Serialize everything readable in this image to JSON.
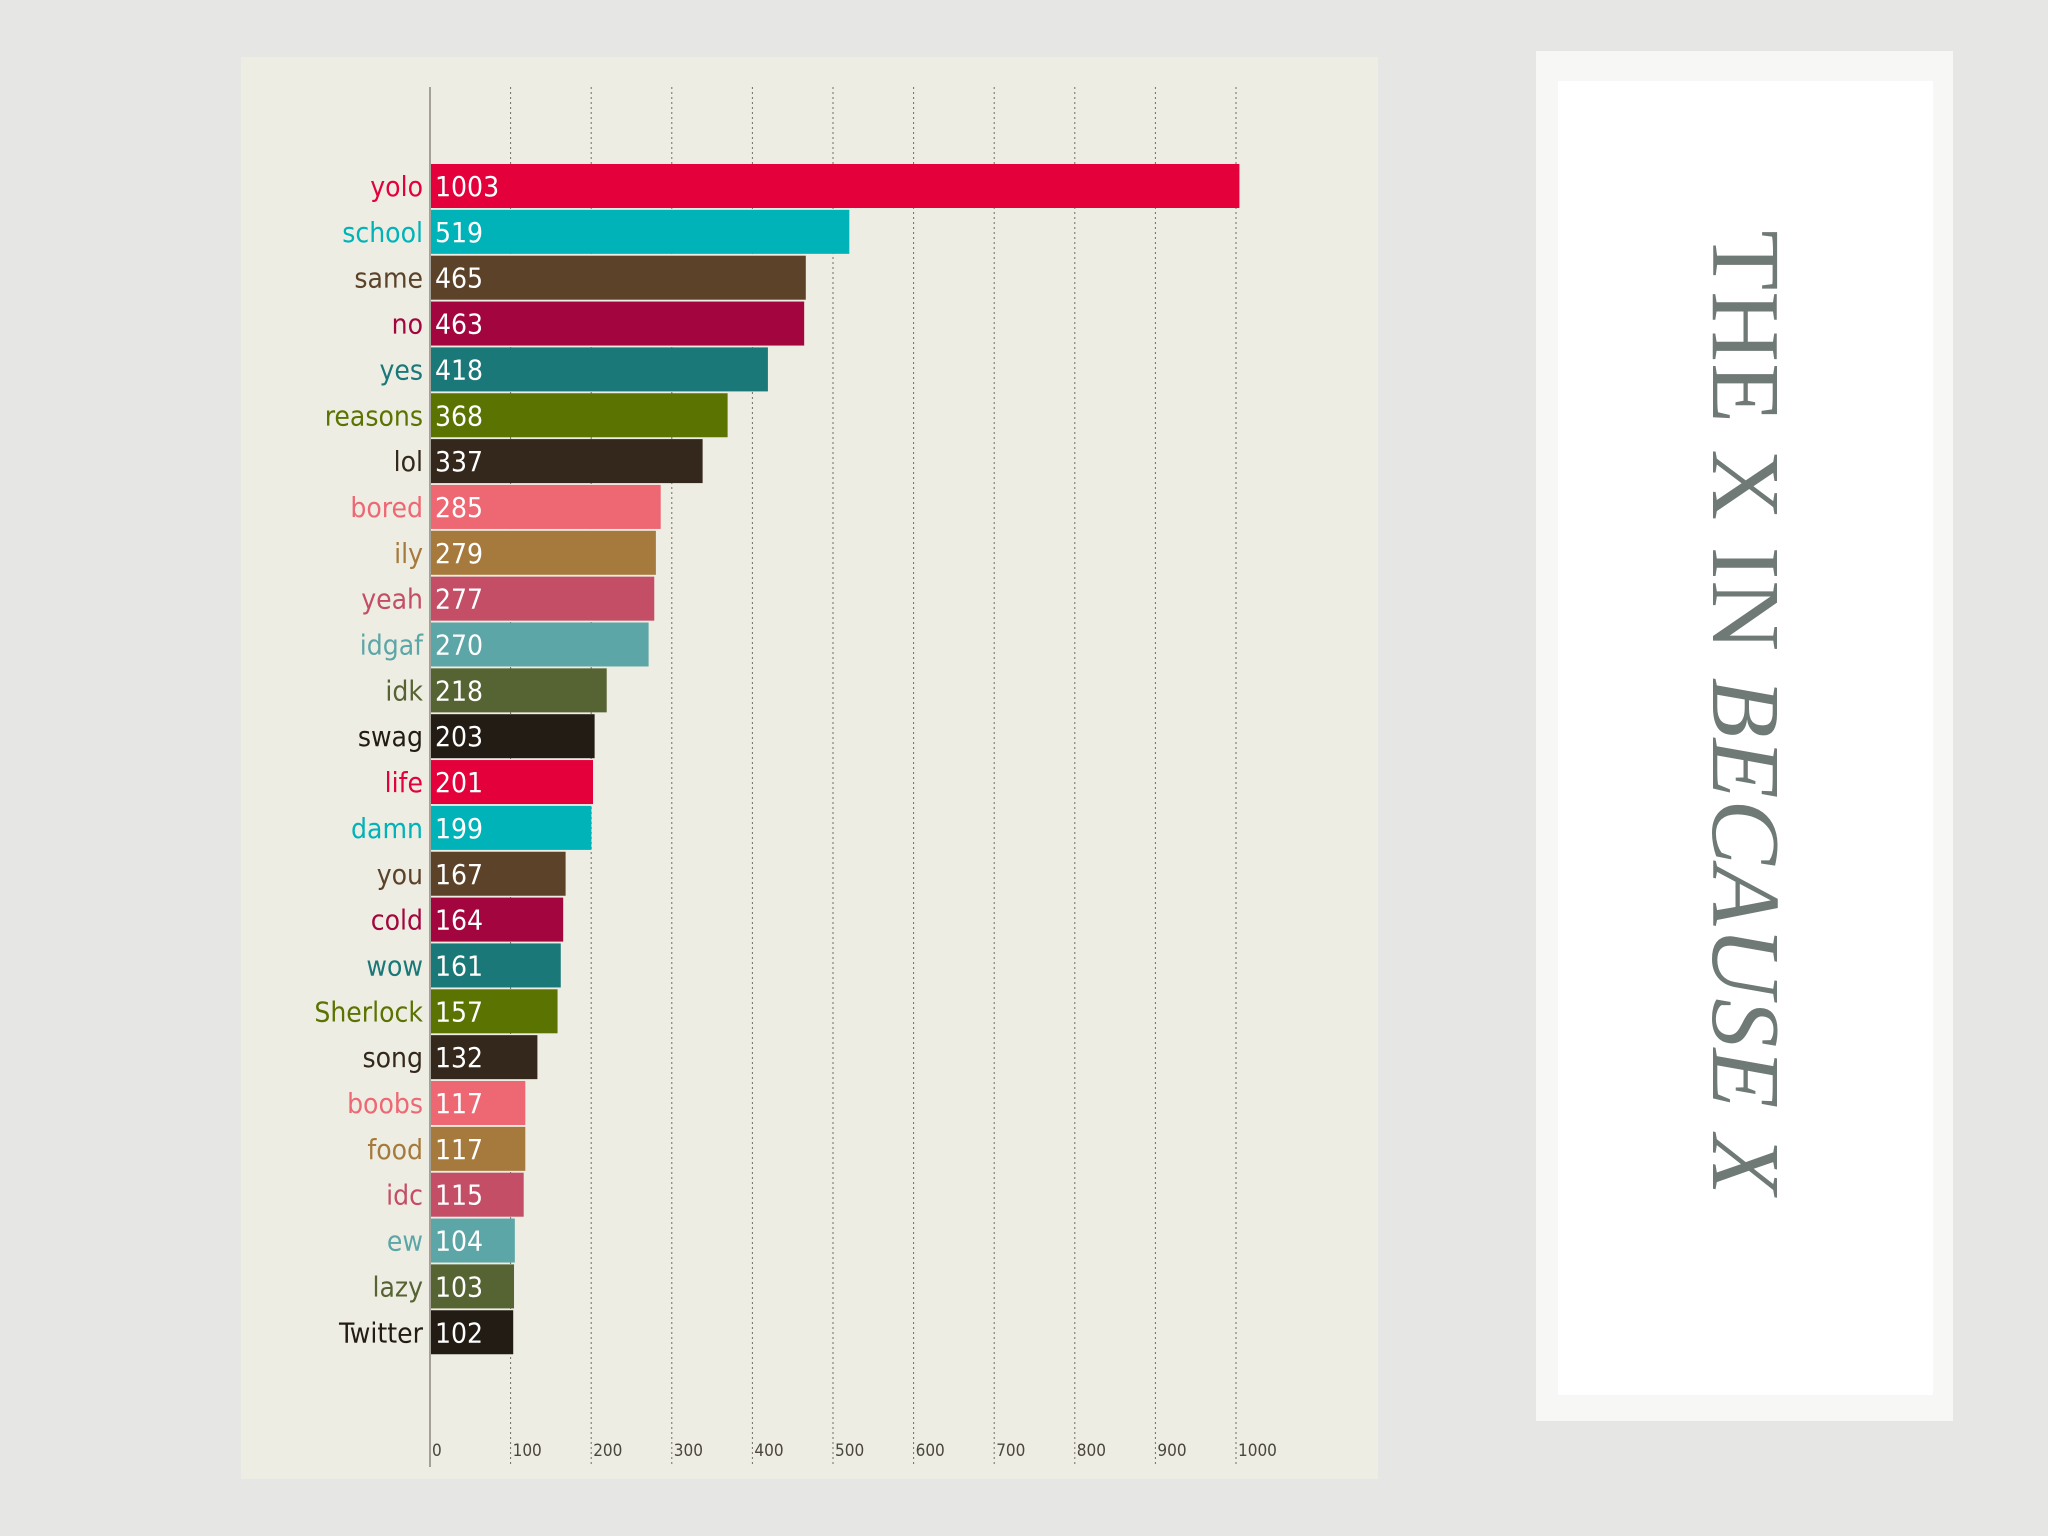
{
  "slide": {
    "title_part1": "THE X IN ",
    "title_part2": "BECAUSE X"
  },
  "chart_data": {
    "type": "bar",
    "orientation": "horizontal",
    "categories": [
      "yolo",
      "school",
      "same",
      "no",
      "yes",
      "reasons",
      "lol",
      "bored",
      "ily",
      "yeah",
      "idgaf",
      "idk",
      "swag",
      "life",
      "damn",
      "you",
      "cold",
      "wow",
      "Sherlock",
      "song",
      "boobs",
      "food",
      "idc",
      "ew",
      "lazy",
      "Twitter"
    ],
    "values": [
      1003,
      519,
      465,
      463,
      418,
      368,
      337,
      285,
      279,
      277,
      270,
      218,
      203,
      201,
      199,
      167,
      164,
      161,
      157,
      132,
      117,
      117,
      115,
      104,
      103,
      102
    ],
    "colors": [
      "#e4003b",
      "#00b3b8",
      "#5c4229",
      "#a3063e",
      "#1b7878",
      "#5b7300",
      "#33281b",
      "#ee6874",
      "#a67a3c",
      "#c44e66",
      "#5da6a8",
      "#566333",
      "#231c14",
      "#e4003b",
      "#00b3b8",
      "#5c4229",
      "#a3063e",
      "#1b7878",
      "#5b7300",
      "#33281b",
      "#ee6874",
      "#a67a3c",
      "#c44e66",
      "#5da6a8",
      "#566333",
      "#231c14"
    ],
    "x_ticks": [
      "0",
      "100",
      "200",
      "300",
      "400",
      "500",
      "600",
      "700",
      "800",
      "900",
      "1000"
    ],
    "xlim": [
      0,
      1000
    ],
    "grid": "vertical dotted",
    "data_labels": "inside bar start",
    "title": "",
    "xlabel": "",
    "ylabel": ""
  }
}
